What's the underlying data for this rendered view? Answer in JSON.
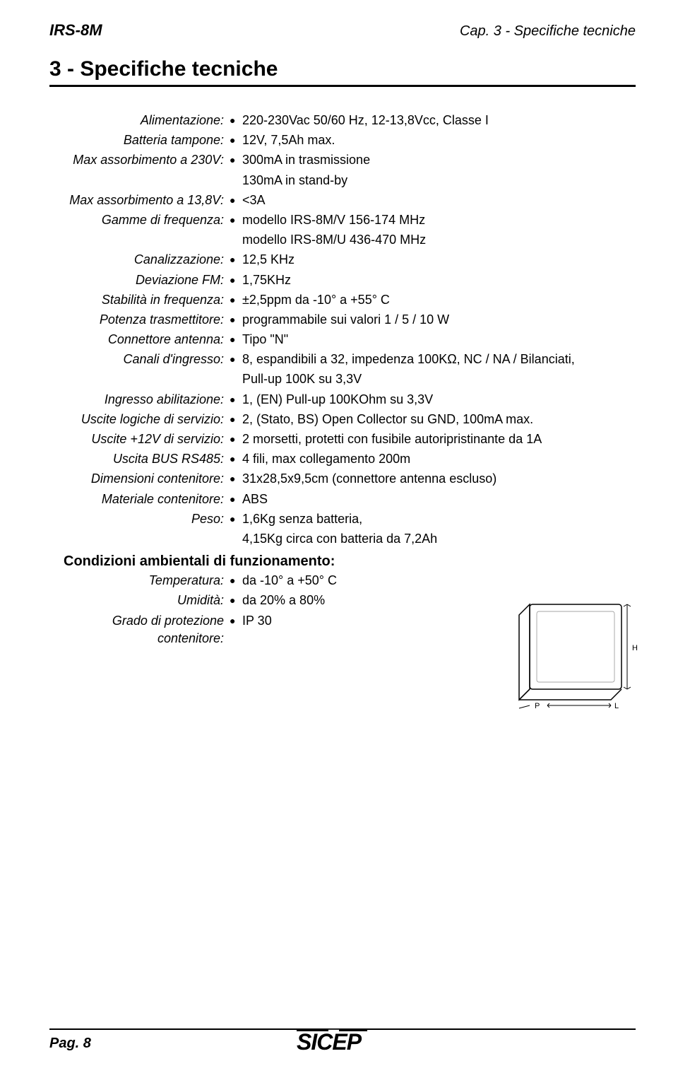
{
  "header": {
    "left": "IRS-8M",
    "right": "Cap. 3 - Specifiche tecniche"
  },
  "section_title": "3  -  Specifiche tecniche",
  "specs": [
    {
      "label": "Alimentazione:",
      "value": "220-230Vac 50/60 Hz, 12-13,8Vcc, Classe I"
    },
    {
      "label": "Batteria tampone:",
      "value": "12V, 7,5Ah max."
    },
    {
      "label": "Max assorbimento a 230V:",
      "value": "300mA in trasmissione",
      "value2": "130mA in stand-by"
    },
    {
      "label": "Max assorbimento a 13,8V:",
      "value": "<3A"
    },
    {
      "label": "Gamme di frequenza:",
      "value": "modello IRS-8M/V  156-174 MHz",
      "value2": "modello IRS-8M/U  436-470 MHz"
    },
    {
      "label": "Canalizzazione:",
      "value": "12,5 KHz"
    },
    {
      "label": "Deviazione FM:",
      "value": "1,75KHz"
    },
    {
      "label": "Stabilità in frequenza:",
      "value": "±2,5ppm da -10° a +55° C"
    },
    {
      "label": "Potenza trasmettitore:",
      "value": "programmabile sui valori 1 / 5 / 10 W"
    },
    {
      "label": "Connettore antenna:",
      "value": "Tipo \"N\""
    },
    {
      "label": "Canali d'ingresso:",
      "value": "8, espandibili a 32, impedenza 100KΩ, NC / NA / Bilanciati,",
      "value2": "Pull-up 100K su 3,3V"
    },
    {
      "label": "Ingresso abilitazione:",
      "value": "1, (EN) Pull-up 100KOhm su 3,3V"
    },
    {
      "label": "Uscite logiche di servizio:",
      "value": "2, (Stato, BS) Open Collector su GND, 100mA max."
    },
    {
      "label": "Uscite +12V di servizio:",
      "value": "2 morsetti, protetti con fusibile autoripristinante da 1A"
    },
    {
      "label": "Uscita BUS RS485:",
      "value": "4 fili, max collegamento 200m"
    },
    {
      "label": "Dimensioni contenitore:",
      "value": "31x28,5x9,5cm (connettore antenna escluso)"
    },
    {
      "label": "Materiale contenitore:",
      "value": "ABS"
    },
    {
      "label": "Peso:",
      "value": "1,6Kg senza batteria,",
      "value2": "4,15Kg circa con batteria da 7,2Ah"
    }
  ],
  "subsection_title": "Condizioni ambientali di funzionamento:",
  "env_specs": [
    {
      "label": "Temperatura:",
      "value": "da -10° a +50° C"
    },
    {
      "label": "Umidità:",
      "value": "da 20% a 80%"
    },
    {
      "label": "Grado di protezione contenitore:",
      "value": "IP 30"
    }
  ],
  "diagram": {
    "dim_labels": {
      "h": "H",
      "p": "P",
      "l": "L"
    }
  },
  "footer": {
    "page": "Pag. 8",
    "logo_text": "SICEP"
  }
}
